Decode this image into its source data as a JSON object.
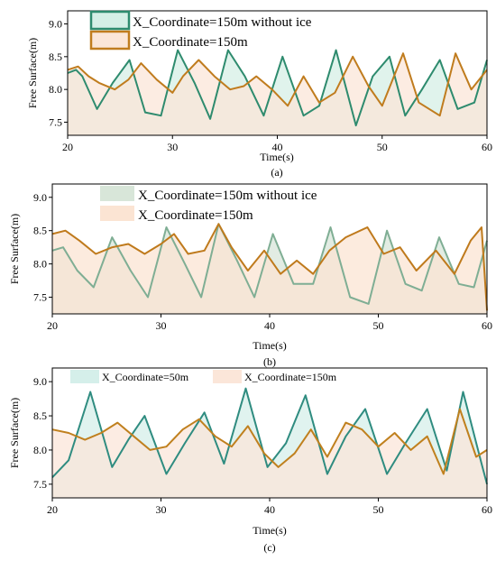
{
  "chart_data": [
    {
      "type": "line",
      "caption": "(a)",
      "xlabel": "Time(s)",
      "ylabel": "Free Surface(m)",
      "xlim": [
        20,
        60
      ],
      "ylim": [
        7.3,
        9.2
      ],
      "xticks": [
        "20",
        "30",
        "40",
        "50",
        "60"
      ],
      "yticks": [
        "7.5",
        "8.0",
        "8.5",
        "9.0"
      ],
      "legend_position": "top-center",
      "series": [
        {
          "name": "X_Coordinate=150m without ice",
          "color": "#2e8b6e",
          "fill": "#d5efe6",
          "x": [
            20,
            20.8,
            21.4,
            22.8,
            24.3,
            25.9,
            27.4,
            28.9,
            30.5,
            32.1,
            33.6,
            35.3,
            36.9,
            38.7,
            40.5,
            42.5,
            44.0,
            45.6,
            47.5,
            49.1,
            50.7,
            52.2,
            53.8,
            55.5,
            57.2,
            58.8,
            60
          ],
          "y": [
            8.25,
            8.3,
            8.2,
            7.7,
            8.1,
            8.45,
            7.65,
            7.6,
            8.6,
            8.1,
            7.55,
            8.6,
            8.2,
            7.6,
            8.5,
            7.6,
            7.75,
            8.6,
            7.45,
            8.2,
            8.5,
            7.6,
            8.0,
            8.45,
            7.7,
            7.8,
            8.45
          ]
        },
        {
          "name": "X_Coordinate=150m",
          "color": "#c07c1e",
          "fill": "#fbe6d8",
          "x": [
            20,
            21,
            22,
            23,
            24.5,
            25.8,
            27,
            28.5,
            30,
            31,
            32.5,
            34,
            35.5,
            36.8,
            38,
            39.5,
            41,
            42.5,
            44,
            45.5,
            47.2,
            48.7,
            50,
            52,
            53.5,
            55.5,
            57,
            58.5,
            60
          ],
          "y": [
            8.3,
            8.35,
            8.2,
            8.1,
            8.0,
            8.15,
            8.4,
            8.15,
            7.95,
            8.2,
            8.45,
            8.2,
            8.0,
            8.05,
            8.2,
            8.0,
            7.75,
            8.2,
            7.8,
            7.95,
            8.5,
            8.05,
            7.75,
            8.55,
            7.8,
            7.6,
            8.55,
            8.0,
            8.3
          ]
        }
      ]
    },
    {
      "type": "line",
      "caption": "(b)",
      "xlabel": "Time(s)",
      "ylabel": "Free Surface(m)",
      "xlim": [
        20,
        60
      ],
      "ylim": [
        7.25,
        9.2
      ],
      "xticks": [
        "20",
        "30",
        "40",
        "50",
        "60"
      ],
      "yticks": [
        "7.5",
        "8.0",
        "8.5",
        "9.0"
      ],
      "legend_position": "top-center",
      "series": [
        {
          "name": "X_Coordinate=150m without ice",
          "color": "#7fae94",
          "fill": "#d8e6d9",
          "x": [
            20,
            21,
            22.3,
            23.8,
            25.5,
            27.2,
            28.8,
            30.5,
            32.2,
            33.7,
            35.3,
            37,
            38.6,
            40.3,
            42.2,
            44,
            45.6,
            47.4,
            49.1,
            50.8,
            52.5,
            54,
            55.6,
            57.4,
            58.8,
            60
          ],
          "y": [
            8.2,
            8.25,
            7.9,
            7.65,
            8.4,
            7.9,
            7.5,
            8.55,
            8.0,
            7.5,
            8.6,
            8.05,
            7.5,
            8.45,
            7.7,
            7.7,
            8.55,
            7.5,
            7.4,
            8.5,
            7.7,
            7.6,
            8.4,
            7.7,
            7.65,
            8.35
          ]
        },
        {
          "name": "X_Coordinate=150m",
          "color": "#bf7a1c",
          "fill": "#fbe4d3",
          "x": [
            20,
            21.2,
            22.5,
            24,
            25.5,
            27,
            28.5,
            30,
            31.2,
            32.5,
            34,
            35.3,
            36.5,
            38,
            39.5,
            41,
            42.5,
            44,
            45.5,
            47,
            49,
            50.5,
            52,
            53.5,
            55.3,
            57,
            58.5,
            59.5,
            60
          ],
          "y": [
            8.45,
            8.5,
            8.35,
            8.15,
            8.25,
            8.3,
            8.15,
            8.3,
            8.45,
            8.15,
            8.2,
            8.6,
            8.25,
            7.9,
            8.2,
            7.85,
            8.05,
            7.85,
            8.2,
            8.4,
            8.55,
            8.15,
            8.25,
            7.9,
            8.2,
            7.85,
            8.35,
            8.55,
            7.3
          ]
        }
      ]
    },
    {
      "type": "line",
      "caption": "(c)",
      "xlabel": "Time(s)",
      "ylabel": "Free Surface(m)",
      "xlim": [
        20,
        60
      ],
      "ylim": [
        7.3,
        9.2
      ],
      "xticks": [
        "20",
        "30",
        "40",
        "50",
        "60"
      ],
      "yticks": [
        "7.5",
        "8.0",
        "8.5",
        "9.0"
      ],
      "legend_position": "top-center",
      "series": [
        {
          "name": "X_Coordinate=50m",
          "color": "#2f8c80",
          "fill": "#d5efea",
          "x": [
            20,
            21.5,
            23.5,
            25.5,
            27,
            28.5,
            30.5,
            32.2,
            34,
            35.8,
            37.8,
            39.8,
            41.5,
            43.3,
            45.3,
            47,
            48.8,
            50.8,
            52.5,
            54.5,
            56.3,
            57.8,
            59.5,
            60
          ],
          "y": [
            7.6,
            7.85,
            8.85,
            7.75,
            8.15,
            8.5,
            7.65,
            8.1,
            8.55,
            7.8,
            8.9,
            7.75,
            8.1,
            8.8,
            7.65,
            8.2,
            8.6,
            7.65,
            8.1,
            8.6,
            7.7,
            8.85,
            7.8,
            7.5
          ]
        },
        {
          "name": "X_Coordinate=150m",
          "color": "#c0801e",
          "fill": "#fbe6d9",
          "x": [
            20,
            21.5,
            23,
            24.5,
            26,
            27.5,
            29,
            30.5,
            32,
            33.5,
            35,
            36.5,
            38,
            39.5,
            40.8,
            42.3,
            43.8,
            45.3,
            47,
            48.5,
            50,
            51.5,
            53,
            54.5,
            56,
            57.5,
            59,
            60
          ],
          "y": [
            8.3,
            8.25,
            8.15,
            8.25,
            8.4,
            8.2,
            8.0,
            8.05,
            8.3,
            8.45,
            8.2,
            8.05,
            8.35,
            7.95,
            7.75,
            7.95,
            8.3,
            7.9,
            8.4,
            8.3,
            8.05,
            8.25,
            8.0,
            8.2,
            7.65,
            8.6,
            7.9,
            8.0
          ]
        }
      ]
    }
  ]
}
